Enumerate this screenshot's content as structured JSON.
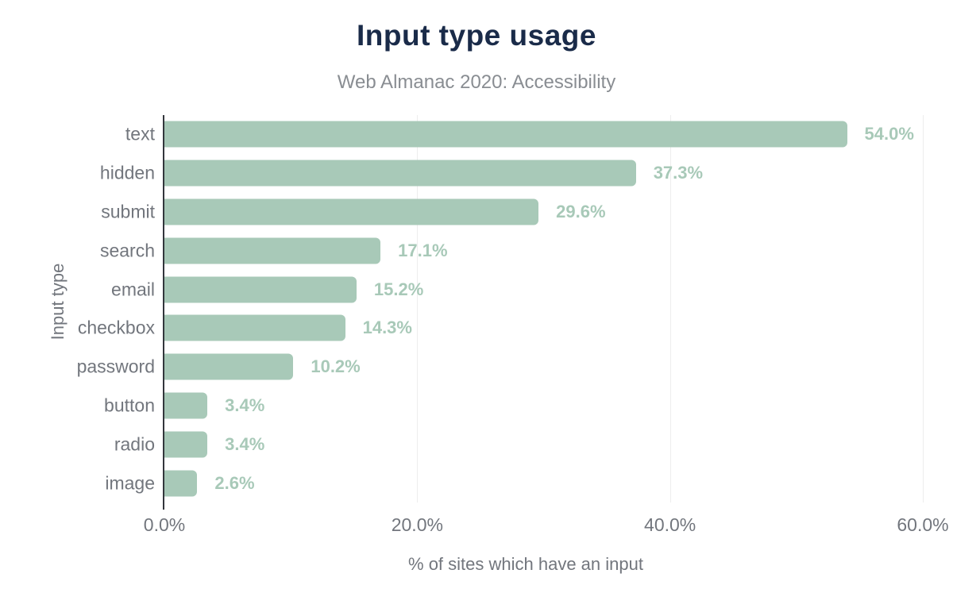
{
  "chart_data": {
    "type": "bar",
    "orientation": "horizontal",
    "title": "Input type usage",
    "subtitle": "Web Almanac 2020: Accessibility",
    "categories": [
      "text",
      "hidden",
      "submit",
      "search",
      "email",
      "checkbox",
      "password",
      "button",
      "radio",
      "image"
    ],
    "values": [
      54.0,
      37.3,
      29.6,
      17.1,
      15.2,
      14.3,
      10.2,
      3.4,
      3.4,
      2.6
    ],
    "value_labels": [
      "54.0%",
      "37.3%",
      "29.6%",
      "17.1%",
      "15.2%",
      "14.3%",
      "10.2%",
      "3.4%",
      "3.4%",
      "2.6%"
    ],
    "xlabel": "% of sites which have an input",
    "ylabel": "Input type",
    "xlim": [
      0,
      60
    ],
    "x_ticks": [
      "0.0%",
      "20.0%",
      "40.0%",
      "60.0%"
    ],
    "grid": "vertical-light",
    "legend": "none",
    "colors": {
      "background": "#ffffff",
      "bar": "#a8c9b8",
      "value_label": "#a8c9b8",
      "title": "#1a2b49",
      "subtitle": "#898d92",
      "axis_text": "#72767d",
      "axis_line": "#33363c",
      "gridline": "#ededed"
    }
  }
}
